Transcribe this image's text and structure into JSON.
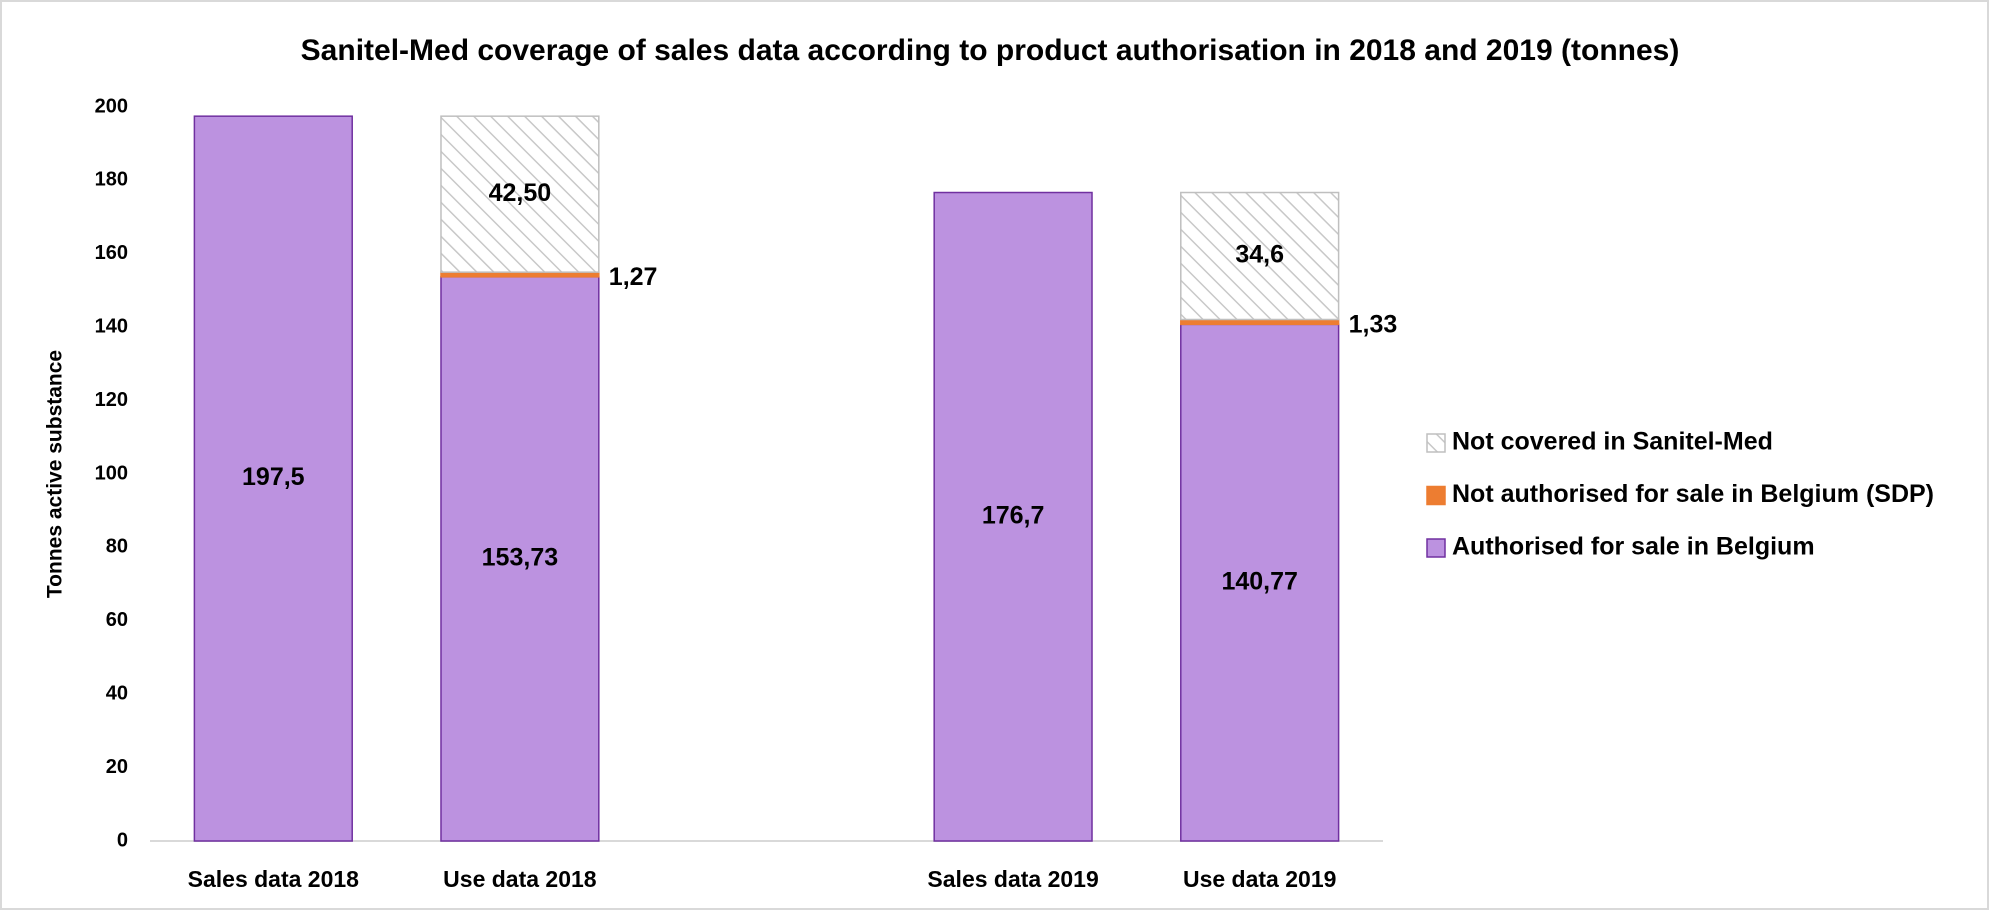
{
  "chart_data": {
    "type": "stacked-bar",
    "title": "Sanitel-Med coverage of sales data according to product authorisation in 2018 and 2019 (tonnes)",
    "y_label": "Tonnes active substance",
    "categories": [
      "Sales data 2018",
      "Use data 2018",
      null,
      "Sales data 2019",
      "Use data 2019"
    ],
    "series": [
      {
        "name": "Authorised for sale in Belgium",
        "color": "#bc92e0",
        "values": [
          197.5,
          153.73,
          null,
          176.7,
          140.77
        ],
        "value_labels": [
          "197,5",
          "153,73",
          null,
          "176,7",
          "140,77"
        ]
      },
      {
        "name": "Not authorised for sale in Belgium (SDP)",
        "color": "#ed7d31",
        "values": [
          null,
          1.27,
          null,
          null,
          1.33
        ],
        "value_labels": [
          null,
          "1,27",
          null,
          null,
          "1,33"
        ]
      },
      {
        "name": "Not covered in Sanitel-Med",
        "color": "hatch",
        "values": [
          null,
          42.5,
          null,
          null,
          34.6
        ],
        "value_labels": [
          null,
          "42,50",
          null,
          null,
          "34,6"
        ]
      }
    ],
    "ylim": [
      0,
      200
    ],
    "yticks": [
      0,
      20,
      40,
      60,
      80,
      100,
      120,
      140,
      160,
      180,
      200
    ],
    "grid": false,
    "legend": "right"
  }
}
